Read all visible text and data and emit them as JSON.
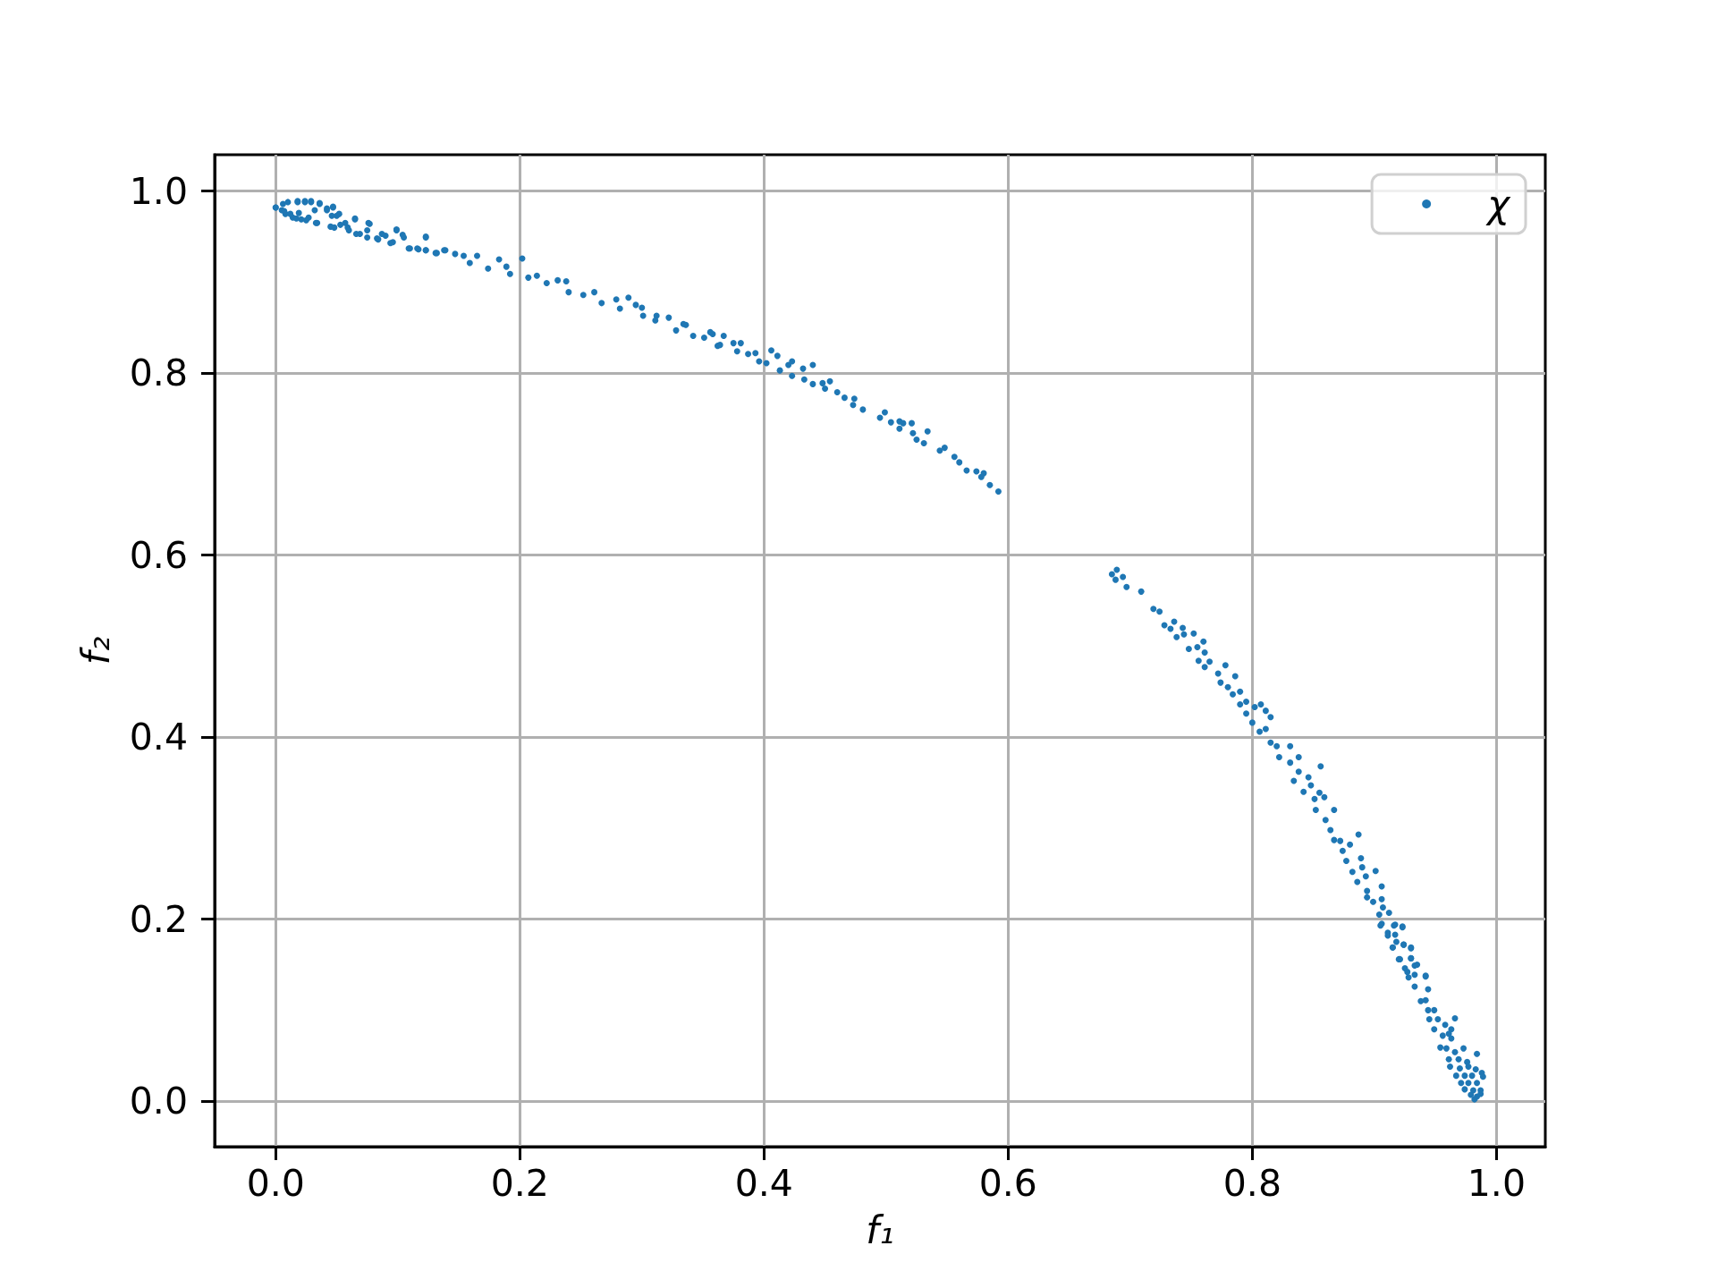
{
  "chart_data": {
    "type": "scatter",
    "xlabel": "f₁",
    "ylabel": "f₂",
    "series": [
      {
        "name": "χ",
        "color": "#1f77b4",
        "x": [
          0,
          0.005,
          0.008,
          0.018,
          0.024,
          0.029,
          0.036,
          0.014,
          0.021,
          0.027,
          0.033,
          0.042,
          0.047,
          0.05,
          0.045,
          0.057,
          0.065,
          0.06,
          0.069,
          0.077,
          0.075,
          0.084,
          0.09,
          0.099,
          0.096,
          0.105,
          0.11,
          0.117,
          0.123,
          0.123,
          0.132,
          0.139,
          0.147,
          0.154,
          0.159,
          0.165,
          0.174,
          0.183,
          0.189,
          0.192,
          0.202,
          0.207,
          0.214,
          0.222,
          0.231,
          0.238,
          0.24,
          0.252,
          0.261,
          0.267,
          0.279,
          0.282,
          0.289,
          0.295,
          0.301,
          0.312,
          0.322,
          0.328,
          0.336,
          0.342,
          0.351,
          0.358,
          0.364,
          0.367,
          0.375,
          0.381,
          0.378,
          0.387,
          0.396,
          0.406,
          0.402,
          0.3,
          0.311,
          0.334,
          0.356,
          0.362,
          0.393,
          0.411,
          0.413,
          0.42,
          0.423,
          0.423,
          0.432,
          0.433,
          0.44,
          0.44,
          0.448,
          0.454,
          0.45,
          0.46,
          0.466,
          0.474,
          0.473,
          0.481,
          0.495,
          0.499,
          0.504,
          0.511,
          0.511,
          0.514,
          0.521,
          0.522,
          0.525,
          0.534,
          0.531,
          0.544,
          0.548,
          0.556,
          0.56,
          0.566,
          0.574,
          0.58,
          0.578,
          0.585,
          0.592,
          0.685,
          0.689,
          0.688,
          0.694,
          0.697,
          0.709,
          0.719,
          0.724,
          0.728,
          0.736,
          0.733,
          0.743,
          0.738,
          0.744,
          0.752,
          0.748,
          0.755,
          0.76,
          0.761,
          0.756,
          0.765,
          0.761,
          0.772,
          0.778,
          0.786,
          0.774,
          0.78,
          0.79,
          0.784,
          0.79,
          0.795,
          0.795,
          0.8,
          0.802,
          0.807,
          0.811,
          0.815,
          0.811,
          0.806,
          0.815,
          0.82,
          0.822,
          0.831,
          0.838,
          0.831,
          0.856,
          0.838,
          0.846,
          0.834,
          0.842,
          0.848,
          0.855,
          0.851,
          0.859,
          0.852,
          0.867,
          0.86,
          0.864,
          0.867,
          0.887,
          0.872,
          0.88,
          0.874,
          0.877,
          0.889,
          0.882,
          0.89,
          0.901,
          0.886,
          0.893,
          0.894,
          0.906,
          0.894,
          0.899,
          0.906,
          0.907,
          0.904,
          0.912,
          0.906,
          0.917,
          0.923,
          0.911,
          0.917,
          0.915,
          0.924,
          0.93,
          0.921,
          0.93,
          0.935,
          0.927,
          0.933,
          0.942,
          0,
          0.006,
          0.01,
          0.018,
          0.024,
          0.029,
          0.036,
          0.007,
          0.012,
          0.019,
          0.017,
          0.025,
          0.032,
          0.034,
          0.042,
          0.047,
          0.046,
          0.052,
          0.048,
          0.053,
          0.059,
          0.065,
          0.066,
          0.076,
          0.075,
          0.083,
          0.087,
          0.094,
          0.099,
          0.104,
          0.109,
          0.116,
          0.123,
          0.123,
          0.131,
          0.138,
          0.905,
          0.916,
          0.923,
          0.911,
          0.918,
          0.915,
          0.924,
          0.93,
          0.92,
          0.93,
          0.925,
          0.933,
          0.928,
          0.942,
          0.933,
          0.944,
          0.938,
          0.942,
          0.944,
          0.949,
          0.966,
          0.945,
          0.952,
          0.958,
          0.963,
          0.949,
          0.956,
          0.961,
          0.963,
          0.954,
          0.959,
          0.973,
          0.966,
          0.984,
          0.961,
          0.969,
          0.976,
          0.962,
          0.97,
          0.977,
          0.983,
          0.988,
          0.989,
          0.967,
          0.974,
          0.98,
          0.971,
          0.977,
          0.984,
          0.974,
          0.981,
          0.987,
          0.979,
          0.984,
          0.982,
          0.987
        ],
        "values": [
          0.982,
          0.979,
          0.975,
          0.988,
          0.988,
          0.988,
          0.986,
          0.971,
          0.969,
          0.971,
          0.965,
          0.979,
          0.982,
          0.973,
          0.961,
          0.965,
          0.969,
          0.957,
          0.953,
          0.964,
          0.949,
          0.947,
          0.951,
          0.957,
          0.944,
          0.949,
          0.937,
          0.936,
          0.949,
          0.935,
          0.932,
          0.935,
          0.931,
          0.929,
          0.921,
          0.929,
          0.915,
          0.925,
          0.917,
          0.909,
          0.926,
          0.905,
          0.907,
          0.899,
          0.902,
          0.901,
          0.889,
          0.886,
          0.889,
          0.877,
          0.881,
          0.871,
          0.883,
          0.875,
          0.863,
          0.863,
          0.861,
          0.847,
          0.853,
          0.841,
          0.839,
          0.843,
          0.831,
          0.841,
          0.833,
          0.833,
          0.824,
          0.821,
          0.813,
          0.825,
          0.811,
          0.872,
          0.858,
          0.854,
          0.845,
          0.83,
          0.822,
          0.819,
          0.803,
          0.809,
          0.813,
          0.797,
          0.805,
          0.793,
          0.809,
          0.788,
          0.789,
          0.791,
          0.783,
          0.779,
          0.773,
          0.772,
          0.765,
          0.76,
          0.751,
          0.757,
          0.746,
          0.747,
          0.739,
          0.745,
          0.745,
          0.734,
          0.727,
          0.736,
          0.723,
          0.715,
          0.718,
          0.708,
          0.702,
          0.693,
          0.692,
          0.69,
          0.686,
          0.677,
          0.67,
          0.579,
          0.584,
          0.573,
          0.576,
          0.565,
          0.56,
          0.541,
          0.538,
          0.523,
          0.527,
          0.519,
          0.52,
          0.51,
          0.513,
          0.514,
          0.497,
          0.499,
          0.505,
          0.493,
          0.484,
          0.483,
          0.477,
          0.47,
          0.479,
          0.467,
          0.46,
          0.455,
          0.45,
          0.447,
          0.436,
          0.439,
          0.426,
          0.416,
          0.433,
          0.436,
          0.429,
          0.422,
          0.409,
          0.406,
          0.394,
          0.39,
          0.378,
          0.39,
          0.378,
          0.372,
          0.368,
          0.362,
          0.356,
          0.352,
          0.34,
          0.347,
          0.339,
          0.332,
          0.334,
          0.32,
          0.32,
          0.309,
          0.298,
          0.287,
          0.293,
          0.286,
          0.282,
          0.275,
          0.264,
          0.267,
          0.252,
          0.257,
          0.253,
          0.241,
          0.247,
          0.231,
          0.236,
          0.224,
          0.219,
          0.222,
          0.213,
          0.205,
          0.207,
          0.195,
          0.194,
          0.191,
          0.185,
          0.183,
          0.169,
          0.172,
          0.168,
          0.156,
          0.157,
          0.15,
          0.142,
          0.139,
          0.137,
          0.982,
          0.986,
          0.988,
          0.989,
          0.989,
          0.989,
          0.987,
          0.978,
          0.975,
          0.976,
          0.97,
          0.968,
          0.979,
          0.965,
          0.981,
          0.983,
          0.973,
          0.975,
          0.96,
          0.963,
          0.96,
          0.97,
          0.953,
          0.965,
          0.957,
          0.948,
          0.953,
          0.943,
          0.958,
          0.952,
          0.937,
          0.937,
          0.95,
          0.935,
          0.932,
          0.935,
          0.193,
          0.193,
          0.192,
          0.182,
          0.175,
          0.169,
          0.172,
          0.169,
          0.156,
          0.157,
          0.146,
          0.149,
          0.136,
          0.138,
          0.126,
          0.123,
          0.11,
          0.111,
          0.1,
          0.1,
          0.091,
          0.09,
          0.09,
          0.084,
          0.079,
          0.079,
          0.072,
          0.074,
          0.069,
          0.059,
          0.058,
          0.058,
          0.054,
          0.052,
          0.046,
          0.046,
          0.043,
          0.038,
          0.036,
          0.038,
          0.035,
          0.031,
          0.027,
          0.028,
          0.028,
          0.028,
          0.02,
          0.02,
          0.02,
          0.013,
          0.012,
          0.012,
          0.007,
          0.005,
          0.002,
          0.008
        ]
      }
    ],
    "xlim": [
      -0.05,
      1.04
    ],
    "ylim": [
      -0.05,
      1.04
    ],
    "xticks": [
      {
        "value": 0,
        "label": "0.0"
      },
      0.2,
      0.4,
      0.6,
      0.8,
      {
        "value": 1,
        "label": "1.0"
      }
    ],
    "yticks": [
      {
        "value": 0,
        "label": "0.0"
      },
      0.2,
      0.4,
      0.6,
      0.8,
      {
        "value": 1,
        "label": "1.0"
      }
    ],
    "grid": true,
    "legend": "top right",
    "marker": "circle"
  }
}
